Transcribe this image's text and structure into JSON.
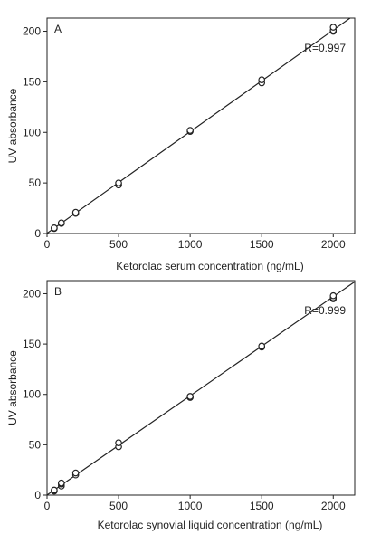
{
  "colors": {
    "ink": "#222222",
    "marker_fill": "#ffffff",
    "background": "#ffffff"
  },
  "chart_data": [
    {
      "type": "scatter",
      "panel_label": "A",
      "xlabel": "Ketorolac serum concentration (ng/mL)",
      "ylabel": "UV absorbance",
      "annotation": "R=0.997",
      "xlim": [
        0,
        2150
      ],
      "ylim": [
        0,
        213
      ],
      "xticks": [
        0,
        500,
        1000,
        1500,
        2000
      ],
      "yticks": [
        0,
        50,
        100,
        150,
        200
      ],
      "grid": false,
      "points": [
        {
          "x": 50,
          "y": 5
        },
        {
          "x": 50,
          "y": 5.5
        },
        {
          "x": 100,
          "y": 10
        },
        {
          "x": 100,
          "y": 10.5
        },
        {
          "x": 200,
          "y": 20
        },
        {
          "x": 200,
          "y": 21
        },
        {
          "x": 500,
          "y": 48
        },
        {
          "x": 500,
          "y": 50
        },
        {
          "x": 1000,
          "y": 101
        },
        {
          "x": 1000,
          "y": 102
        },
        {
          "x": 1500,
          "y": 149
        },
        {
          "x": 1500,
          "y": 152
        },
        {
          "x": 2000,
          "y": 200
        },
        {
          "x": 2000,
          "y": 201
        },
        {
          "x": 2000,
          "y": 204
        }
      ],
      "fit_line": {
        "slope": 0.1005,
        "intercept": 0.2,
        "x_range": [
          0,
          2150
        ]
      }
    },
    {
      "type": "scatter",
      "panel_label": "B",
      "xlabel": "Ketorolac synovial liquid concentration (ng/mL)",
      "ylabel": "UV absorbance",
      "annotation": "R=0.999",
      "xlim": [
        0,
        2150
      ],
      "ylim": [
        0,
        213
      ],
      "xticks": [
        0,
        500,
        1000,
        1500,
        2000
      ],
      "yticks": [
        0,
        50,
        100,
        150,
        200
      ],
      "grid": false,
      "points": [
        {
          "x": 50,
          "y": 4
        },
        {
          "x": 50,
          "y": 5
        },
        {
          "x": 100,
          "y": 9
        },
        {
          "x": 100,
          "y": 11
        },
        {
          "x": 100,
          "y": 12
        },
        {
          "x": 200,
          "y": 20
        },
        {
          "x": 200,
          "y": 22
        },
        {
          "x": 500,
          "y": 48
        },
        {
          "x": 500,
          "y": 52
        },
        {
          "x": 1000,
          "y": 97
        },
        {
          "x": 1000,
          "y": 98
        },
        {
          "x": 1500,
          "y": 147
        },
        {
          "x": 1500,
          "y": 148
        },
        {
          "x": 2000,
          "y": 195
        },
        {
          "x": 2000,
          "y": 196
        },
        {
          "x": 2000,
          "y": 198
        }
      ],
      "fit_line": {
        "slope": 0.0985,
        "intercept": 0.1,
        "x_range": [
          0,
          2150
        ]
      }
    }
  ]
}
